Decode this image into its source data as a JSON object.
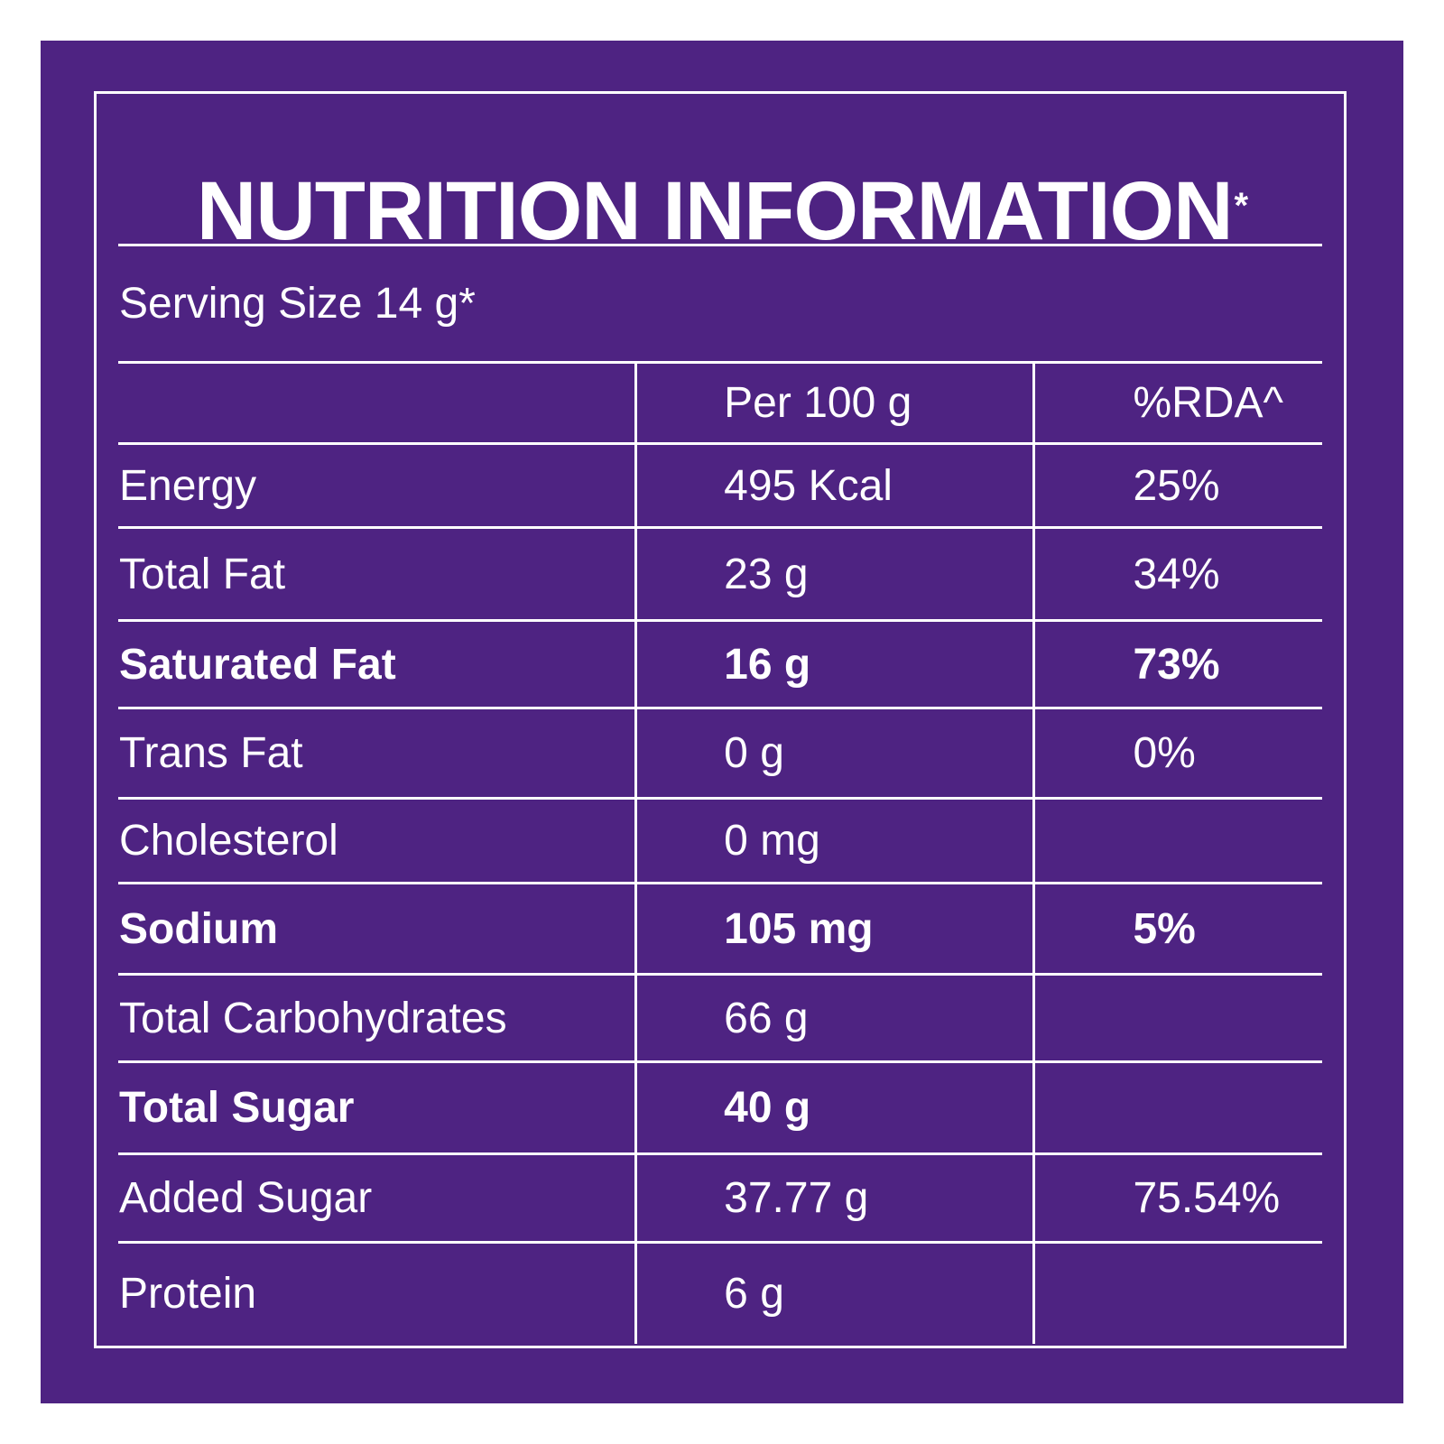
{
  "title": "NUTRITION INFORMATION",
  "title_mark": "*",
  "serving_size": "Serving Size 14 g*",
  "columns": {
    "per100": "Per 100 g",
    "rda": "%RDA^"
  },
  "rows": [
    {
      "nutrient": "Energy",
      "per100": "495 Kcal",
      "rda": "25%"
    },
    {
      "nutrient": "Total Fat",
      "per100": "23 g",
      "rda": "34%"
    },
    {
      "nutrient": "Saturated Fat",
      "per100": "16 g",
      "rda": "73%"
    },
    {
      "nutrient": "Trans Fat",
      "per100": "0 g",
      "rda": "0%"
    },
    {
      "nutrient": "Cholesterol",
      "per100": "0 mg",
      "rda": ""
    },
    {
      "nutrient": "Sodium",
      "per100": "105 mg",
      "rda": "5%"
    },
    {
      "nutrient": "Total Carbohydrates",
      "per100": "66 g",
      "rda": ""
    },
    {
      "nutrient": "Total Sugar",
      "per100": "40 g",
      "rda": ""
    },
    {
      "nutrient": "Added Sugar",
      "per100": "37.77 g",
      "rda": "75.54%"
    },
    {
      "nutrient": "Protein",
      "per100": "6 g",
      "rda": ""
    }
  ],
  "colors": {
    "background": "#4e2382",
    "text": "#ffffff"
  }
}
